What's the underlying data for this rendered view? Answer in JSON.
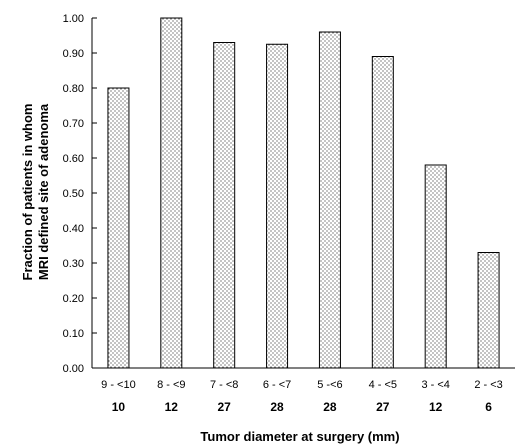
{
  "chart_data": {
    "type": "bar",
    "title": "",
    "xlabel": "Tumor diameter at surgery (mm)",
    "ylabel_lines": [
      "Fraction of patients in whom",
      "MRI defined site of adenoma"
    ],
    "ylim": [
      0,
      1.0
    ],
    "yticks": [
      "0.00",
      "0.10",
      "0.20",
      "0.30",
      "0.40",
      "0.50",
      "0.60",
      "0.70",
      "0.80",
      "0.90",
      "1.00"
    ],
    "categories": [
      "9 - <10",
      "8 - <9",
      "7 - <8",
      "6 - <7",
      "5 -<6",
      "4 - <5",
      "3 - <4",
      "2 - <3"
    ],
    "counts": [
      "10",
      "12",
      "27",
      "28",
      "28",
      "27",
      "12",
      "6"
    ],
    "values": [
      0.8,
      1.0,
      0.93,
      0.925,
      0.96,
      0.89,
      0.58,
      0.33
    ],
    "bar_fill": "dotted",
    "grid": false,
    "legend": "none"
  }
}
